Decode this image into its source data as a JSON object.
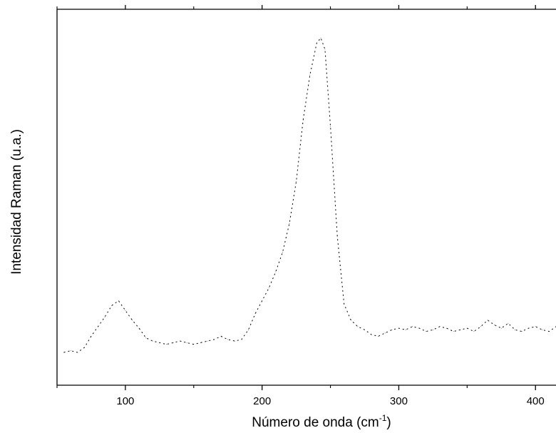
{
  "chart_data": {
    "type": "line",
    "title": "",
    "xlabel": "Número de onda (cm-1)",
    "xlabel_parts": {
      "main": "Número de onda (cm",
      "sup": "-1",
      "close": ")"
    },
    "ylabel": "Intensidad Raman (u.a.)",
    "xlim": [
      50,
      415
    ],
    "ylim": [
      0,
      1
    ],
    "xticks": [
      100,
      200,
      300,
      400
    ],
    "grid": false,
    "legend": "none",
    "line_style": "dotted",
    "line_color": "#000000",
    "series": [
      {
        "x": [
          55,
          60,
          65,
          70,
          75,
          80,
          85,
          90,
          95,
          100,
          105,
          110,
          115,
          120,
          125,
          130,
          135,
          140,
          145,
          150,
          155,
          160,
          165,
          170,
          175,
          180,
          185,
          190,
          195,
          200,
          205,
          210,
          215,
          220,
          225,
          230,
          235,
          240,
          243,
          246,
          250,
          255,
          260,
          265,
          270,
          275,
          280,
          285,
          290,
          295,
          300,
          305,
          310,
          315,
          320,
          325,
          330,
          335,
          340,
          345,
          350,
          355,
          360,
          365,
          370,
          375,
          380,
          385,
          390,
          395,
          400,
          405,
          410,
          415
        ],
        "values": [
          0.02,
          0.025,
          0.02,
          0.035,
          0.07,
          0.1,
          0.13,
          0.165,
          0.18,
          0.15,
          0.12,
          0.095,
          0.065,
          0.055,
          0.05,
          0.045,
          0.05,
          0.055,
          0.05,
          0.045,
          0.05,
          0.055,
          0.06,
          0.07,
          0.06,
          0.055,
          0.06,
          0.09,
          0.14,
          0.18,
          0.22,
          0.27,
          0.33,
          0.42,
          0.55,
          0.74,
          0.88,
          0.98,
          0.995,
          0.96,
          0.72,
          0.38,
          0.17,
          0.12,
          0.1,
          0.09,
          0.075,
          0.07,
          0.08,
          0.09,
          0.095,
          0.09,
          0.1,
          0.095,
          0.085,
          0.09,
          0.1,
          0.095,
          0.085,
          0.09,
          0.095,
          0.085,
          0.1,
          0.12,
          0.105,
          0.095,
          0.11,
          0.09,
          0.085,
          0.095,
          0.1,
          0.09,
          0.085,
          0.1
        ]
      }
    ]
  }
}
